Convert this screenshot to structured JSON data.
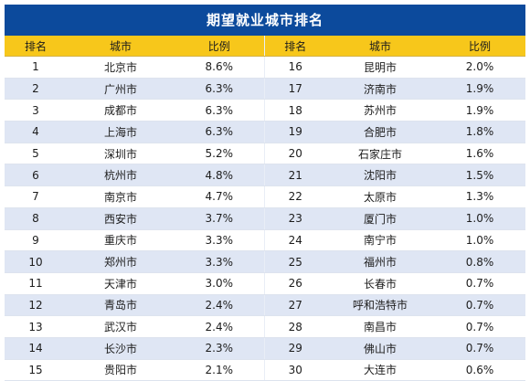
{
  "title": "期望就业城市排名",
  "headers": [
    "排名",
    "城市",
    "比例",
    "排名",
    "城市",
    "比例"
  ],
  "rows": [
    {
      "r1": "1",
      "c1": "北京市",
      "p1": "8.6%",
      "r2": "16",
      "c2": "昆明市",
      "p2": "2.0%"
    },
    {
      "r1": "2",
      "c1": "广州市",
      "p1": "6.3%",
      "r2": "17",
      "c2": "济南市",
      "p2": "1.9%"
    },
    {
      "r1": "3",
      "c1": "成都市",
      "p1": "6.3%",
      "r2": "18",
      "c2": "苏州市",
      "p2": "1.9%"
    },
    {
      "r1": "4",
      "c1": "上海市",
      "p1": "6.3%",
      "r2": "19",
      "c2": "合肥市",
      "p2": "1.8%"
    },
    {
      "r1": "5",
      "c1": "深圳市",
      "p1": "5.2%",
      "r2": "20",
      "c2": "石家庄市",
      "p2": "1.6%"
    },
    {
      "r1": "6",
      "c1": "杭州市",
      "p1": "4.8%",
      "r2": "21",
      "c2": "沈阳市",
      "p2": "1.5%"
    },
    {
      "r1": "7",
      "c1": "南京市",
      "p1": "4.7%",
      "r2": "22",
      "c2": "太原市",
      "p2": "1.3%"
    },
    {
      "r1": "8",
      "c1": "西安市",
      "p1": "3.7%",
      "r2": "23",
      "c2": "厦门市",
      "p2": "1.0%"
    },
    {
      "r1": "9",
      "c1": "重庆市",
      "p1": "3.3%",
      "r2": "24",
      "c2": "南宁市",
      "p2": "1.0%"
    },
    {
      "r1": "10",
      "c1": "郑州市",
      "p1": "3.3%",
      "r2": "25",
      "c2": "福州市",
      "p2": "0.8%"
    },
    {
      "r1": "11",
      "c1": "天津市",
      "p1": "3.0%",
      "r2": "26",
      "c2": "长春市",
      "p2": "0.7%"
    },
    {
      "r1": "12",
      "c1": "青岛市",
      "p1": "2.4%",
      "r2": "27",
      "c2": "呼和浩特市",
      "p2": "0.7%"
    },
    {
      "r1": "13",
      "c1": "武汉市",
      "p1": "2.4%",
      "r2": "28",
      "c2": "南昌市",
      "p2": "0.7%"
    },
    {
      "r1": "14",
      "c1": "长沙市",
      "p1": "2.3%",
      "r2": "29",
      "c2": "佛山市",
      "p2": "0.7%"
    },
    {
      "r1": "15",
      "c1": "贵阳市",
      "p1": "2.1%",
      "r2": "30",
      "c2": "大连市",
      "p2": "0.6%"
    }
  ]
}
